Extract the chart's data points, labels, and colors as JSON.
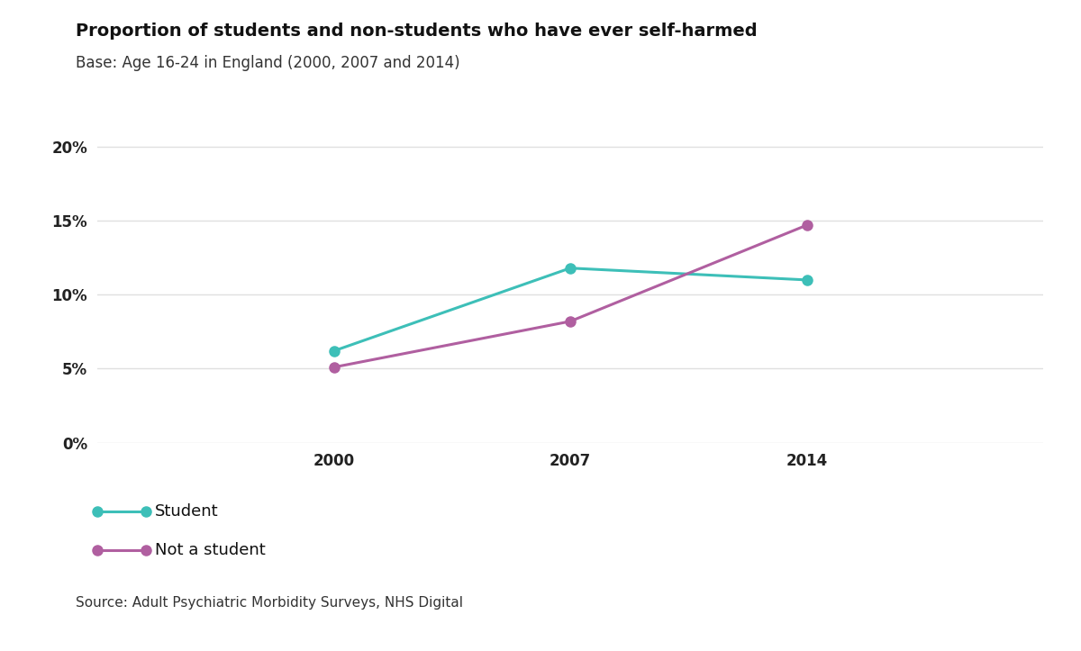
{
  "title": "Proportion of students and non-students who have ever self-harmed",
  "subtitle": "Base: Age 16-24 in England (2000, 2007 and 2014)",
  "years": [
    2000,
    2007,
    2014
  ],
  "student_values": [
    0.062,
    0.118,
    0.11
  ],
  "non_student_values": [
    0.051,
    0.082,
    0.147
  ],
  "student_color": "#3dbfb8",
  "non_student_color": "#b05fa0",
  "student_label": "Student",
  "non_student_label": "Not a student",
  "source_text": "Source: Adult Psychiatric Morbidity Surveys, NHS Digital",
  "yticks": [
    0.0,
    0.05,
    0.1,
    0.15,
    0.2
  ],
  "ytick_labels": [
    "0%",
    "5%",
    "10%",
    "15%",
    "20%"
  ],
  "ylim": [
    0.0,
    0.22
  ],
  "xlim": [
    1993,
    2021
  ],
  "background_color": "#ffffff",
  "grid_color": "#e0e0e0",
  "bar_color_bottom": "#3dbfb8",
  "title_fontsize": 14,
  "subtitle_fontsize": 12,
  "tick_fontsize": 12,
  "legend_fontsize": 13,
  "source_fontsize": 11
}
